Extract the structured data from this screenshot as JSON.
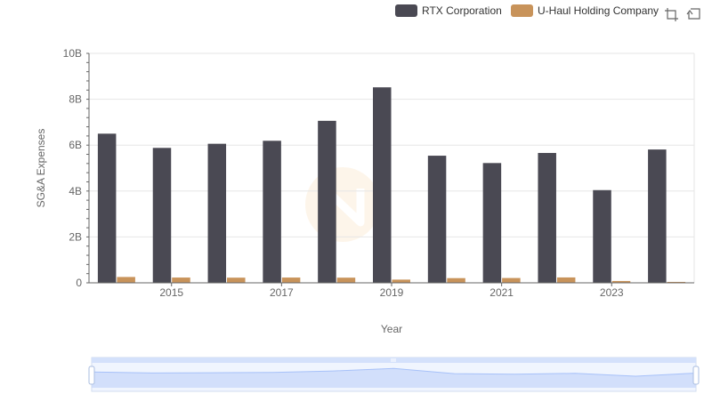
{
  "toolbar": {
    "icons": [
      "crop-zoom-icon",
      "restore-icon"
    ]
  },
  "colors": {
    "rtx": "#4a4953",
    "uhaul": "#c8935a",
    "grid": "#e6e6e6",
    "slider_fill": "#d4e1fb",
    "slider_border": "#a9bde0"
  },
  "chart_data": {
    "type": "bar",
    "xlabel": "Year",
    "ylabel": "SG&A Expenses",
    "categories": [
      "2014",
      "2015",
      "2016",
      "2017",
      "2018",
      "2019",
      "2020",
      "2021",
      "2022",
      "2023",
      "2024"
    ],
    "x_tick_labels": [
      "2015",
      "2017",
      "2019",
      "2021",
      "2023"
    ],
    "y_tick_values": [
      0,
      2000000000,
      4000000000,
      6000000000,
      8000000000,
      10000000000
    ],
    "y_tick_labels": [
      "0",
      "2B",
      "4B",
      "6B",
      "8B",
      "10B"
    ],
    "ylim": [
      0,
      10000000000
    ],
    "legend_position": "top-right",
    "grid": true,
    "series": [
      {
        "name": "RTX Corporation",
        "values": [
          6500000000,
          5880000000,
          6060000000,
          6190000000,
          7060000000,
          8520000000,
          5540000000,
          5220000000,
          5660000000,
          4040000000,
          5810000000
        ]
      },
      {
        "name": "U-Haul Holding Company",
        "values": [
          255000000,
          230000000,
          225000000,
          230000000,
          225000000,
          140000000,
          205000000,
          210000000,
          235000000,
          80000000,
          40000000
        ]
      }
    ]
  }
}
